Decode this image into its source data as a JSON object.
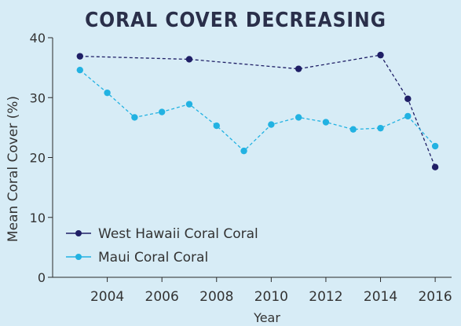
{
  "chart_data": {
    "type": "line",
    "title": "CORAL COVER DECREASING",
    "xlabel": "Year",
    "ylabel": "Mean Coral Cover (%)",
    "xlim": [
      2002.0,
      2016.6
    ],
    "ylim": [
      0,
      40
    ],
    "x_ticks": [
      2004,
      2006,
      2008,
      2010,
      2012,
      2014,
      2016
    ],
    "y_ticks": [
      0,
      10,
      20,
      30,
      40
    ],
    "grid": false,
    "legend_position": "bottom-left",
    "series": [
      {
        "name": "West Hawaii Coral Coral",
        "color": "#1f1f66",
        "x": [
          2003,
          2007,
          2011,
          2014,
          2015,
          2016
        ],
        "values": [
          36.9,
          36.4,
          34.8,
          37.1,
          29.8,
          18.4
        ]
      },
      {
        "name": "Maui Coral Coral",
        "color": "#22b2e2",
        "x": [
          2003,
          2004,
          2005,
          2006,
          2007,
          2008,
          2009,
          2010,
          2011,
          2012,
          2013,
          2014,
          2015,
          2016
        ],
        "values": [
          34.6,
          30.8,
          26.7,
          27.6,
          28.9,
          25.3,
          21.1,
          25.5,
          26.7,
          25.9,
          24.7,
          24.9,
          26.9,
          21.9
        ]
      }
    ]
  }
}
